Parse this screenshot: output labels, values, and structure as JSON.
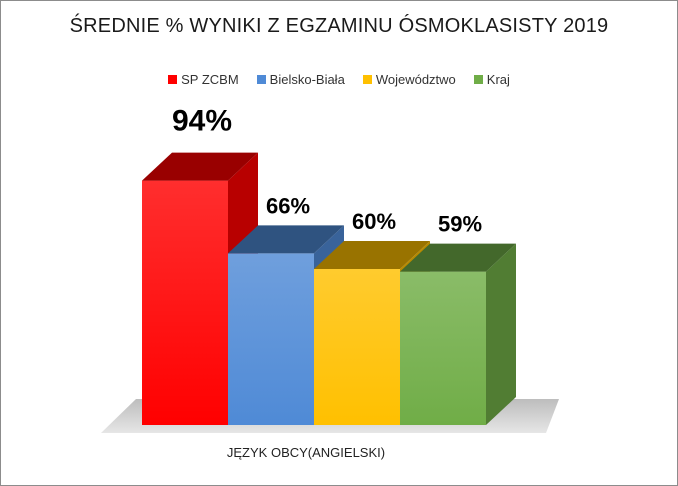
{
  "chart_data": {
    "type": "bar",
    "title": "ŚREDNIE % WYNIKI Z EGZAMINU ÓSMOKLASISTY 2019",
    "categories": [
      "JĘZYK OBCY(ANGIELSKI)"
    ],
    "series": [
      {
        "name": "SP ZCBM",
        "values": [
          94
        ],
        "color": "#ff0000",
        "data_label": "94%"
      },
      {
        "name": "Bielsko-Biała",
        "values": [
          66
        ],
        "color": "#4f8ad6",
        "data_label": "66%"
      },
      {
        "name": "Województwo",
        "values": [
          60
        ],
        "color": "#ffc000",
        "data_label": "60%"
      },
      {
        "name": "Kraj",
        "values": [
          59
        ],
        "color": "#70ad47",
        "data_label": "59%"
      }
    ],
    "unit": "%",
    "ylim": [
      0,
      100
    ],
    "legend_position": "top",
    "grid": false,
    "style": "3d-column"
  }
}
